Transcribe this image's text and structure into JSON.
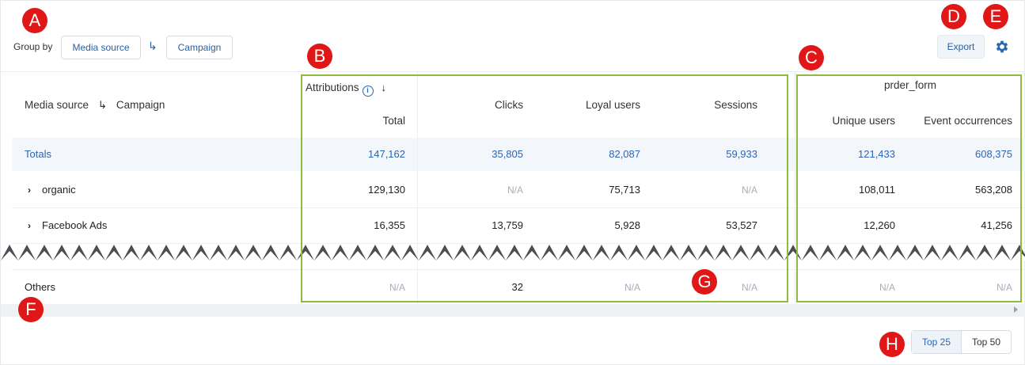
{
  "toolbar": {
    "group_by_label": "Group by",
    "group_by_primary": "Media source",
    "group_by_arrow": "↳",
    "group_by_secondary": "Campaign",
    "export_label": "Export",
    "settings_icon": "gear-icon"
  },
  "table": {
    "first_col_header": {
      "primary": "Media source",
      "arrow": "↳",
      "secondary": "Campaign"
    },
    "attributions_group": {
      "label": "Attributions",
      "info_icon": "i",
      "sort_icon": "↓",
      "sub": "Total"
    },
    "metric_headers": [
      "Clicks",
      "Loyal users",
      "Sessions"
    ],
    "event_group": {
      "label": "prder_form",
      "subs": [
        "Unique users",
        "Event occurrences"
      ]
    },
    "rows": [
      {
        "name": "Totals",
        "expandable": false,
        "values": [
          "147,162",
          "35,805",
          "82,087",
          "59,933",
          "121,433",
          "608,375"
        ]
      },
      {
        "name": "organic",
        "expandable": true,
        "values": [
          "129,130",
          "N/A",
          "75,713",
          "N/A",
          "108,011",
          "563,208"
        ]
      },
      {
        "name": "Facebook Ads",
        "expandable": true,
        "values": [
          "16,355",
          "13,759",
          "5,928",
          "53,527",
          "12,260",
          "41,256"
        ]
      },
      {
        "name": "Others",
        "expandable": false,
        "values": [
          "N/A",
          "32",
          "N/A",
          "N/A",
          "N/A",
          "N/A"
        ]
      }
    ],
    "expand_icon": "›"
  },
  "pagination": {
    "options": [
      "Top 25",
      "Top 50"
    ],
    "selected": "Top 25"
  },
  "markers": [
    "A",
    "B",
    "C",
    "D",
    "E",
    "F",
    "G",
    "H"
  ],
  "colors": {
    "accent": "#2a67b0",
    "marker": "#e11717",
    "highlight": "#8cbc3b"
  }
}
